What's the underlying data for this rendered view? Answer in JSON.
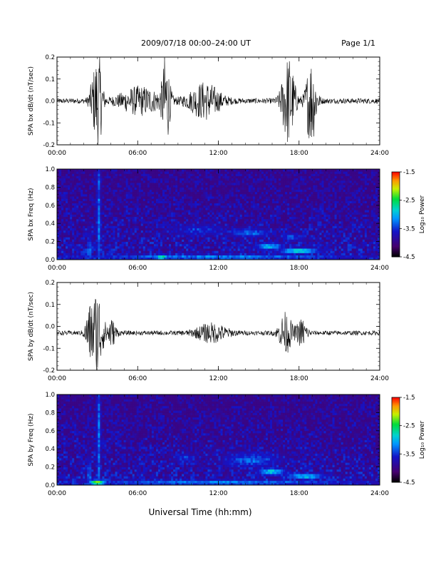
{
  "header": {
    "title": "2009/07/18  00:00–24:00 UT",
    "page": "Page 1/1"
  },
  "xlabel": "Universal Time (hh:mm)",
  "colorbar": {
    "label": "Log₁₀ Power",
    "ticks": [
      "-1.5",
      "-2.5",
      "-3.5",
      "-4.5"
    ],
    "range": [
      -4.5,
      -1.5
    ]
  },
  "chart_data": [
    {
      "type": "line",
      "ylabel": "SPA bx dB/dt (nT/sec)",
      "xlim": [
        0,
        24
      ],
      "ylim": [
        -0.2,
        0.2
      ],
      "x_ticks": [
        "00:00",
        "06:00",
        "12:00",
        "18:00",
        "24:00"
      ],
      "y_ticks": [
        "0.2",
        "0.1",
        "0.0",
        "-0.1",
        "-0.2"
      ],
      "baseline": 0.0,
      "bursts": [
        {
          "center_hour": 2.7,
          "width_hour": 0.3,
          "amplitude": 0.09
        },
        {
          "center_hour": 3.1,
          "width_hour": 0.3,
          "amplitude": 0.2
        },
        {
          "center_hour": 6.2,
          "width_hour": 1.6,
          "amplitude": 0.06
        },
        {
          "center_hour": 8.1,
          "width_hour": 0.3,
          "amplitude": 0.2
        },
        {
          "center_hour": 11.0,
          "width_hour": 1.2,
          "amplitude": 0.08
        },
        {
          "center_hour": 17.2,
          "width_hour": 0.5,
          "amplitude": 0.2
        },
        {
          "center_hour": 18.9,
          "width_hour": 0.4,
          "amplitude": 0.2
        }
      ],
      "noise": 0.012
    },
    {
      "type": "heatmap",
      "ylabel": "SPA bx Freq (Hz)",
      "xlim": [
        0,
        24
      ],
      "ylim": [
        0.0,
        1.0
      ],
      "x_ticks": [
        "00:00",
        "06:00",
        "12:00",
        "18:00",
        "24:00"
      ],
      "y_ticks": [
        "1.0",
        "0.8",
        "0.6",
        "0.4",
        "0.2",
        "0.0"
      ],
      "value_range": [
        -4.5,
        -1.5
      ],
      "background": -4.0,
      "features": [
        {
          "t": 3.1,
          "f": 0.5,
          "dt": 0.15,
          "df": 1.0,
          "v": -3.3
        },
        {
          "t": 2.4,
          "f": 0.1,
          "dt": 0.15,
          "df": 0.2,
          "v": -3.2
        },
        {
          "t": 10.5,
          "f": 0.33,
          "dt": 2.0,
          "df": 0.06,
          "v": -3.5
        },
        {
          "t": 14.3,
          "f": 0.3,
          "dt": 1.5,
          "df": 0.05,
          "v": -3.3
        },
        {
          "t": 17.5,
          "f": 0.25,
          "dt": 0.9,
          "df": 0.04,
          "v": -3.4
        },
        {
          "t": 15.8,
          "f": 0.15,
          "dt": 1.0,
          "df": 0.04,
          "v": -3.0
        },
        {
          "t": 18.0,
          "f": 0.1,
          "dt": 1.5,
          "df": 0.03,
          "v": -2.8
        },
        {
          "t": 12.0,
          "f": 0.03,
          "dt": 11.0,
          "df": 0.03,
          "v": -3.2
        },
        {
          "t": 7.8,
          "f": 0.03,
          "dt": 0.5,
          "df": 0.03,
          "v": -2.6
        }
      ]
    },
    {
      "type": "line",
      "ylabel": "SPA by dB/dt (nT/sec)",
      "xlim": [
        0,
        24
      ],
      "ylim": [
        -0.2,
        0.2
      ],
      "x_ticks": [
        "00:00",
        "06:00",
        "12:00",
        "18:00",
        "24:00"
      ],
      "y_ticks": [
        "0.2",
        "0.1",
        "0.0",
        "-0.1",
        "-0.2"
      ],
      "baseline": -0.03,
      "bursts": [
        {
          "center_hour": 2.4,
          "width_hour": 0.3,
          "amplitude": 0.1
        },
        {
          "center_hour": 3.0,
          "width_hour": 0.4,
          "amplitude": 0.2
        },
        {
          "center_hour": 4.0,
          "width_hour": 0.4,
          "amplitude": 0.06
        },
        {
          "center_hour": 11.5,
          "width_hour": 1.2,
          "amplitude": 0.04
        },
        {
          "center_hour": 17.0,
          "width_hour": 0.5,
          "amplitude": 0.09
        },
        {
          "center_hour": 18.2,
          "width_hour": 0.4,
          "amplitude": 0.06
        }
      ],
      "noise": 0.01
    },
    {
      "type": "heatmap",
      "ylabel": "SPA by Freq (Hz)",
      "xlim": [
        0,
        24
      ],
      "ylim": [
        0.0,
        1.0
      ],
      "x_ticks": [
        "00:00",
        "06:00",
        "12:00",
        "18:00",
        "24:00"
      ],
      "y_ticks": [
        "1.0",
        "0.8",
        "0.6",
        "0.4",
        "0.2",
        "0.0"
      ],
      "value_range": [
        -4.5,
        -1.5
      ],
      "background": -4.0,
      "features": [
        {
          "t": 3.1,
          "f": 0.5,
          "dt": 0.15,
          "df": 1.0,
          "v": -3.3
        },
        {
          "t": 2.4,
          "f": 0.1,
          "dt": 0.15,
          "df": 0.2,
          "v": -3.2
        },
        {
          "t": 9.5,
          "f": 0.3,
          "dt": 0.8,
          "df": 0.05,
          "v": -3.5
        },
        {
          "t": 14.5,
          "f": 0.28,
          "dt": 2.0,
          "df": 0.08,
          "v": -3.3
        },
        {
          "t": 16.0,
          "f": 0.15,
          "dt": 1.0,
          "df": 0.04,
          "v": -2.9
        },
        {
          "t": 18.5,
          "f": 0.1,
          "dt": 1.5,
          "df": 0.03,
          "v": -2.9
        },
        {
          "t": 12.0,
          "f": 0.03,
          "dt": 11.0,
          "df": 0.03,
          "v": -3.2
        },
        {
          "t": 3.0,
          "f": 0.03,
          "dt": 0.6,
          "df": 0.03,
          "v": -2.2
        }
      ]
    }
  ]
}
